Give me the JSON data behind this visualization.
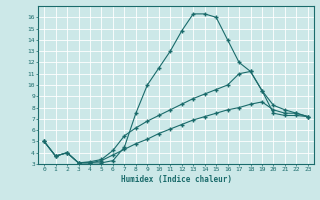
{
  "xlabel": "Humidex (Indice chaleur)",
  "bg_color": "#cce8e8",
  "line_color": "#1a6b6b",
  "grid_color": "#ffffff",
  "xlim": [
    -0.5,
    23.5
  ],
  "ylim": [
    3,
    17
  ],
  "yticks": [
    3,
    4,
    5,
    6,
    7,
    8,
    9,
    10,
    11,
    12,
    13,
    14,
    15,
    16
  ],
  "xticks": [
    0,
    1,
    2,
    3,
    4,
    5,
    6,
    7,
    8,
    9,
    10,
    11,
    12,
    13,
    14,
    15,
    16,
    17,
    18,
    19,
    20,
    21,
    22,
    23
  ],
  "line1_x": [
    0,
    1,
    2,
    3,
    4,
    5,
    6,
    7,
    8,
    9,
    10,
    11,
    12,
    13,
    14,
    15,
    16,
    17,
    18,
    19,
    20,
    21,
    22,
    23
  ],
  "line1_y": [
    5.0,
    3.7,
    4.0,
    3.1,
    3.1,
    3.1,
    3.3,
    4.5,
    7.5,
    10.0,
    11.5,
    13.0,
    14.8,
    16.3,
    16.3,
    16.0,
    14.0,
    12.0,
    11.2,
    9.5,
    7.5,
    7.3,
    7.3,
    7.2
  ],
  "line2_x": [
    0,
    1,
    2,
    3,
    4,
    5,
    6,
    7,
    8,
    9,
    10,
    11,
    12,
    13,
    14,
    15,
    16,
    17,
    18,
    19,
    20,
    21,
    22,
    23
  ],
  "line2_y": [
    5.0,
    3.7,
    4.0,
    3.1,
    3.2,
    3.4,
    4.2,
    5.5,
    6.2,
    6.8,
    7.3,
    7.8,
    8.3,
    8.8,
    9.2,
    9.6,
    10.0,
    11.0,
    11.2,
    9.5,
    8.2,
    7.8,
    7.5,
    7.2
  ],
  "line3_x": [
    0,
    1,
    2,
    3,
    4,
    5,
    6,
    7,
    8,
    9,
    10,
    11,
    12,
    13,
    14,
    15,
    16,
    17,
    18,
    19,
    20,
    21,
    22,
    23
  ],
  "line3_y": [
    5.0,
    3.7,
    4.0,
    3.1,
    3.1,
    3.3,
    3.8,
    4.3,
    4.8,
    5.2,
    5.7,
    6.1,
    6.5,
    6.9,
    7.2,
    7.5,
    7.8,
    8.0,
    8.3,
    8.5,
    7.8,
    7.5,
    7.5,
    7.2
  ]
}
